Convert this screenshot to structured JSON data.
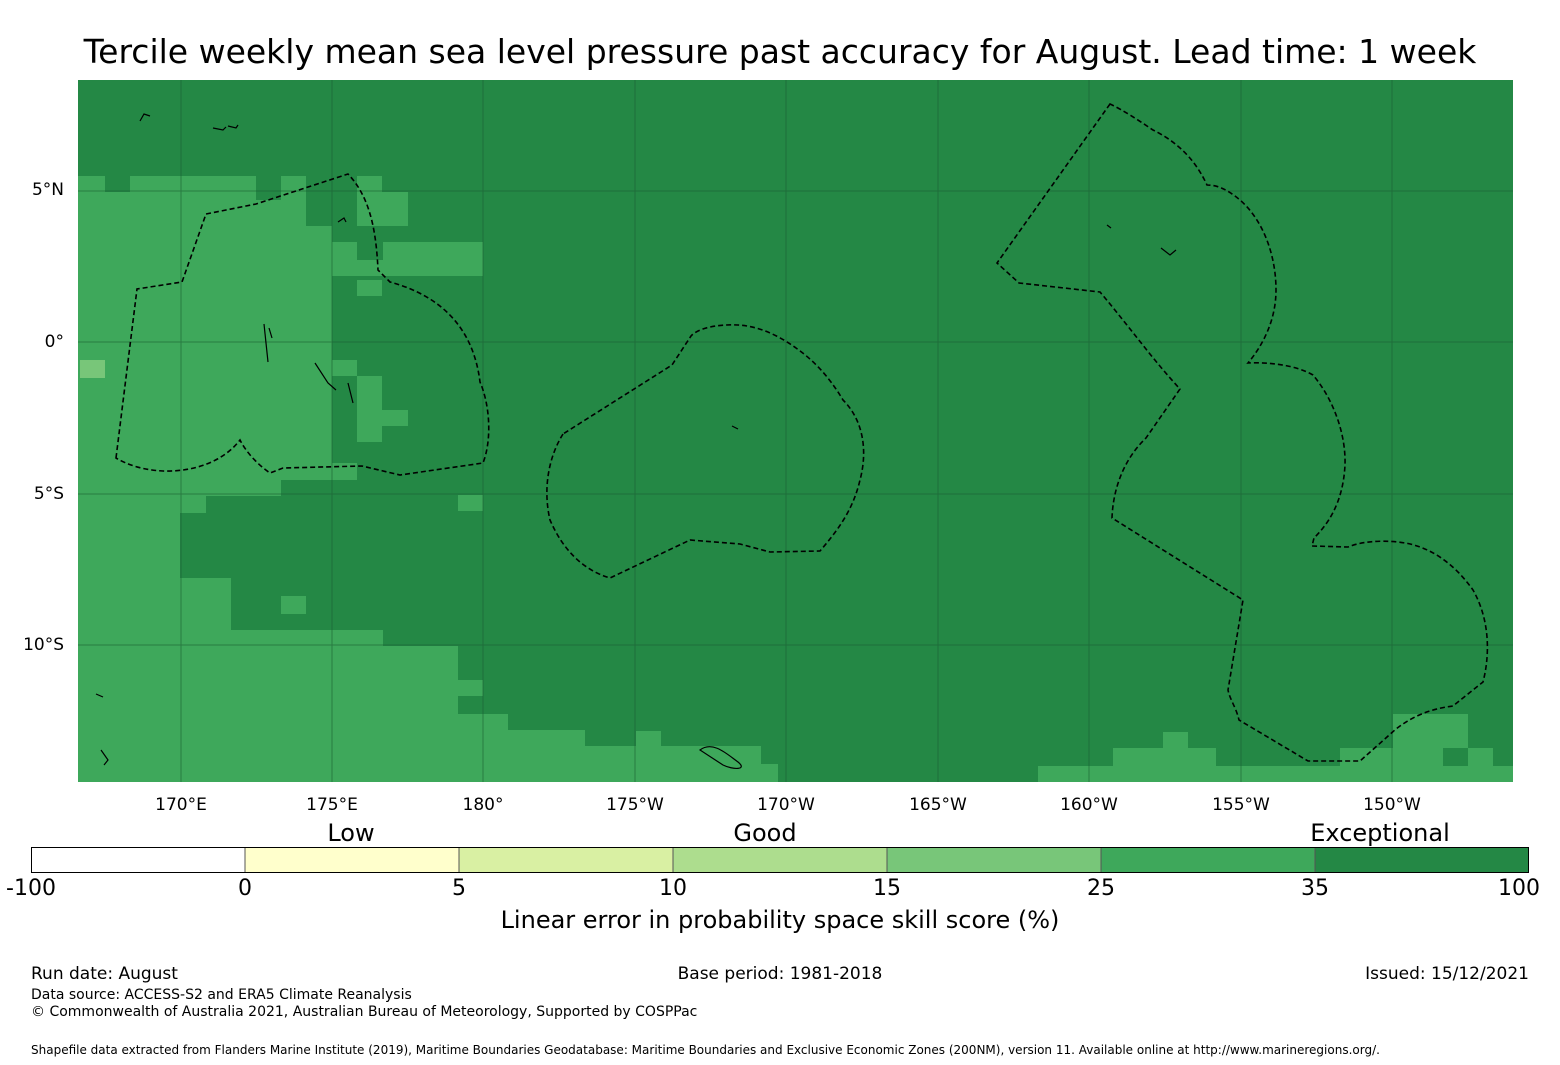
{
  "title": "Tercile weekly mean sea level pressure past accuracy for August. Lead time: 1 week",
  "map": {
    "colors": {
      "exceptional": "#248845",
      "high": "#3ea85b",
      "light": "#78c679",
      "line": "#000000",
      "grid": "#1b5e33"
    },
    "lat_ticks": [
      "5°N",
      "0°",
      "5°S",
      "10°S"
    ],
    "lon_ticks": [
      "170°E",
      "175°E",
      "180°",
      "175°W",
      "170°W",
      "165°W",
      "160°W",
      "155°W",
      "150°W"
    ]
  },
  "legend": {
    "categories": [
      "Low",
      "Good",
      "Exceptional"
    ],
    "ticks": [
      "-100",
      "0",
      "5",
      "10",
      "15",
      "25",
      "35",
      "100"
    ],
    "colors": [
      "#ffffff",
      "#ffffcc",
      "#d9f0a3",
      "#addd8e",
      "#78c679",
      "#3ea85b",
      "#248845"
    ],
    "label": "Linear error in probability space skill score (%)"
  },
  "footer": {
    "run_date": "Run date: August",
    "base_period": "Base period: 1981-2018",
    "issued": "Issued: 15/12/2021",
    "data_source": "Data source: ACCESS-S2 and ERA5 Climate Reanalysis",
    "copyright": "© Commonwealth of Australia 2021, Australian Bureau of Meteorology, Supported by COSPPac",
    "shapefile": "Shapefile data extracted from Flanders Marine Institute (2019), Maritime Boundaries Geodatabase: Maritime Boundaries and Exclusive Economic Zones (200NM), version 11. Available online at http://www.marineregions.org/."
  }
}
